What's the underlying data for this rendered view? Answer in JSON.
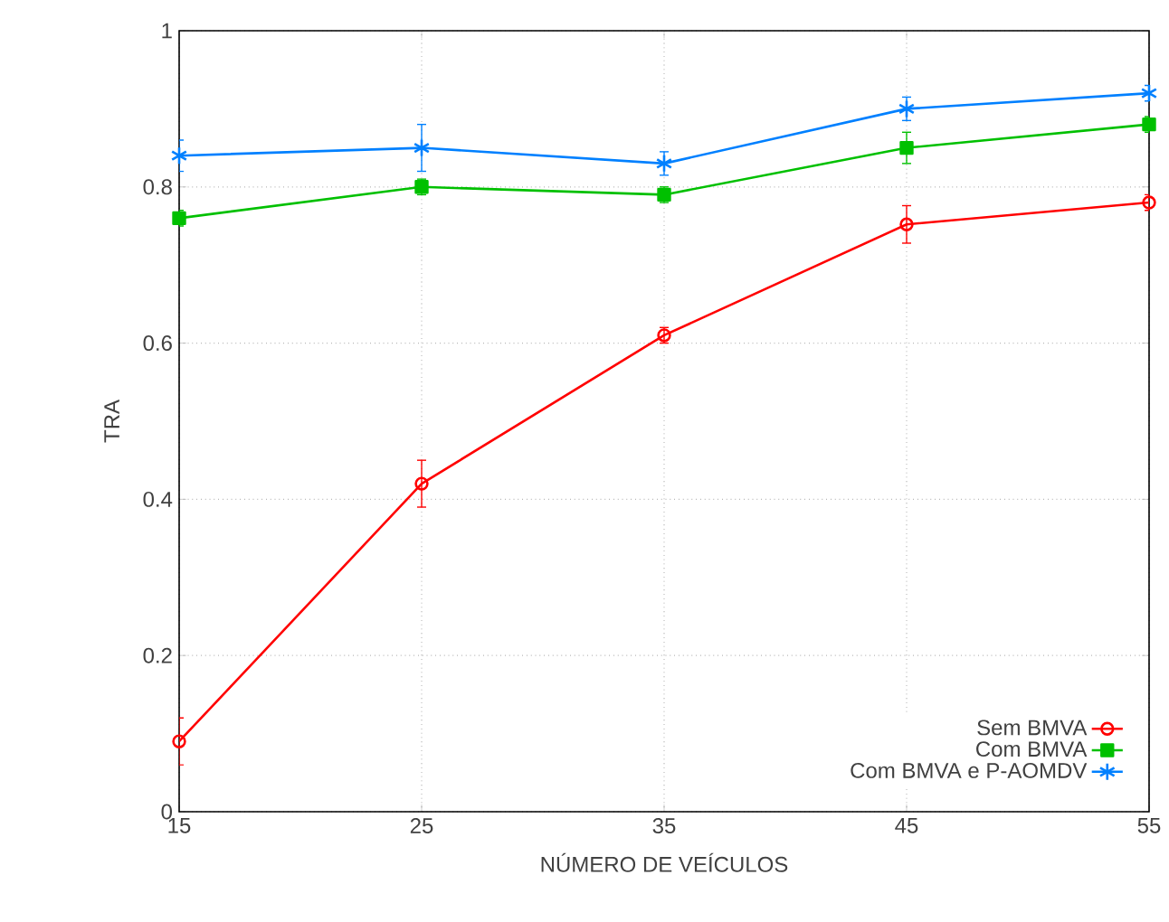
{
  "chart_data": {
    "type": "line",
    "xlabel": "NÚMERO DE VEÍCULOS",
    "ylabel": "TRA",
    "x": [
      15,
      25,
      35,
      45,
      55
    ],
    "xlim": [
      15,
      55
    ],
    "xticks": [
      15,
      25,
      35,
      45,
      55
    ],
    "ylim": [
      0,
      1
    ],
    "yticks": [
      0,
      0.2,
      0.4,
      0.6,
      0.8,
      1
    ],
    "grid": true,
    "legend": "bottom right",
    "line_style": "solid",
    "series": [
      {
        "name": "Sem BMVA",
        "color": "#ff0000",
        "marker": "circle",
        "values": [
          0.09,
          0.42,
          0.61,
          0.752,
          0.78
        ],
        "errors": [
          0.03,
          0.03,
          0.01,
          0.024,
          0.01
        ]
      },
      {
        "name": "Com BMVA",
        "color": "#00c000",
        "marker": "square",
        "values": [
          0.76,
          0.8,
          0.79,
          0.85,
          0.88
        ],
        "errors": [
          0.01,
          0.01,
          0.01,
          0.02,
          0.01
        ]
      },
      {
        "name": "Com BMVA e P-AOMDV",
        "color": "#0080ff",
        "marker": "cross",
        "values": [
          0.84,
          0.85,
          0.83,
          0.9,
          0.92
        ],
        "errors": [
          0.02,
          0.03,
          0.015,
          0.015,
          0.01
        ]
      }
    ]
  }
}
